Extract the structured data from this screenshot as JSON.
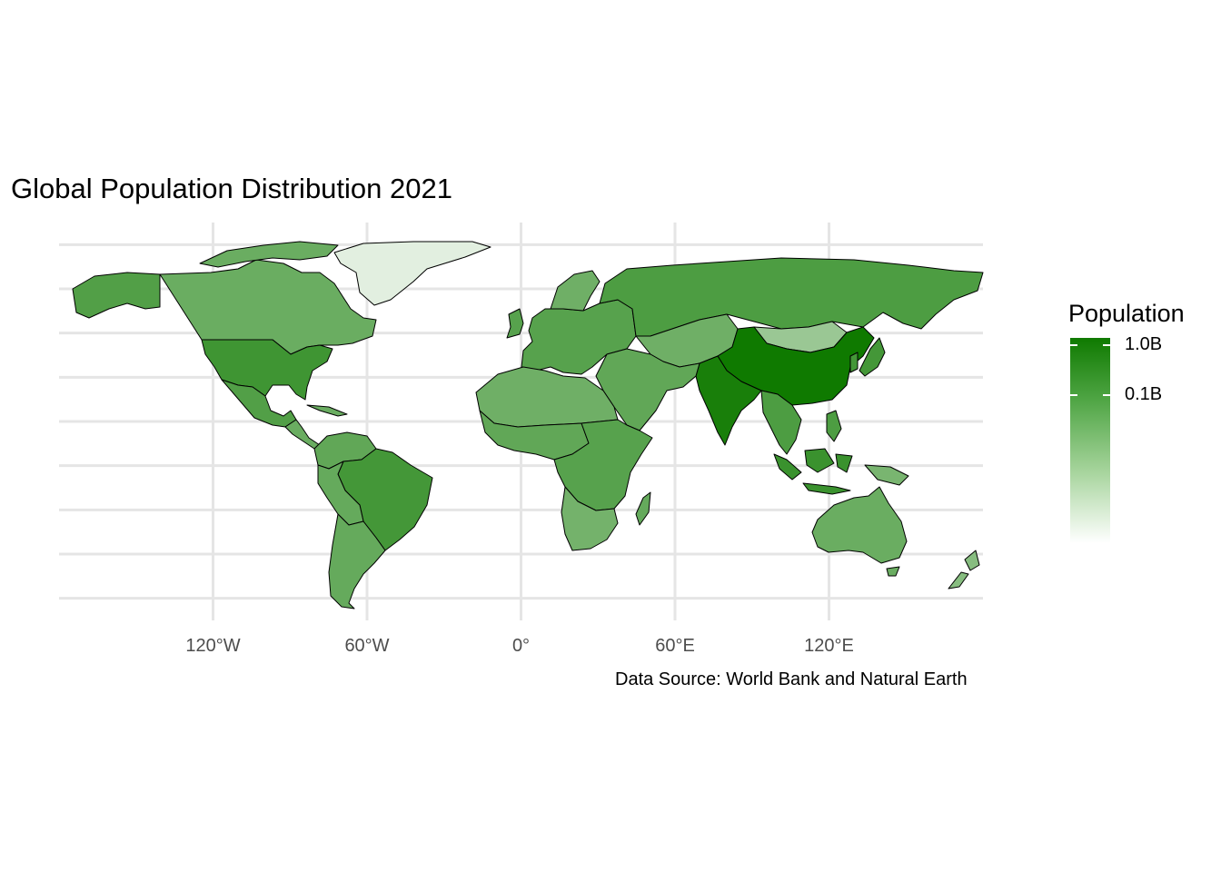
{
  "title": "Global Population Distribution 2021",
  "caption": "Data Source: World Bank and Natural Earth",
  "map": {
    "projection": "equirectangular",
    "grid": true,
    "x_ticks": [
      {
        "lon": -120,
        "label": "120°W"
      },
      {
        "lon": -60,
        "label": "60°W"
      },
      {
        "lon": 0,
        "label": "0°"
      },
      {
        "lon": 60,
        "label": "60°E"
      },
      {
        "lon": 120,
        "label": "120°E"
      }
    ],
    "y_grid_lats": [
      -80,
      -60,
      -40,
      -20,
      0,
      20,
      40,
      60,
      80
    ],
    "lon_range": [
      -180,
      180
    ],
    "lat_range": [
      -90,
      90
    ]
  },
  "colors": {
    "scale_high": "#0f7a00",
    "scale_low": "#ffffff",
    "border": "#000000",
    "grid": "#e5e5e5",
    "background": "#ffffff"
  },
  "legend": {
    "title": "Population",
    "placement": "right",
    "scale": "log",
    "ticks": [
      {
        "value": 1000000000,
        "label": "1.0B"
      },
      {
        "value": 100000000,
        "label": "0.1B"
      }
    ],
    "range": [
      100000,
      1412000000
    ]
  },
  "regions": [
    {
      "name": "Greenland",
      "shade": 0.12
    },
    {
      "name": "Canada",
      "shade": 0.62
    },
    {
      "name": "Alaska (USA)",
      "shade": 0.72
    },
    {
      "name": "United States",
      "shade": 0.8
    },
    {
      "name": "Mexico",
      "shade": 0.72
    },
    {
      "name": "Central America",
      "shade": 0.62
    },
    {
      "name": "Colombia / Venezuela",
      "shade": 0.66
    },
    {
      "name": "Brazil",
      "shade": 0.78
    },
    {
      "name": "Peru / Bolivia",
      "shade": 0.64
    },
    {
      "name": "Argentina / Chile",
      "shade": 0.64
    },
    {
      "name": "Europe",
      "shade": 0.7
    },
    {
      "name": "Scandinavia",
      "shade": 0.6
    },
    {
      "name": "Russia",
      "shade": 0.74
    },
    {
      "name": "Kazakhstan / Central Asia",
      "shade": 0.6
    },
    {
      "name": "Mongolia",
      "shade": 0.42
    },
    {
      "name": "China",
      "shade": 1.0
    },
    {
      "name": "India",
      "shade": 0.96
    },
    {
      "name": "Middle East",
      "shade": 0.66
    },
    {
      "name": "Southeast Asia",
      "shade": 0.74
    },
    {
      "name": "Indonesia",
      "shade": 0.82
    },
    {
      "name": "Japan / Korea",
      "shade": 0.78
    },
    {
      "name": "North Africa",
      "shade": 0.6
    },
    {
      "name": "Sahel / West Africa",
      "shade": 0.66
    },
    {
      "name": "Central / East Africa",
      "shade": 0.7
    },
    {
      "name": "Southern Africa",
      "shade": 0.58
    },
    {
      "name": "Madagascar",
      "shade": 0.64
    },
    {
      "name": "Australia",
      "shade": 0.62
    },
    {
      "name": "New Zealand",
      "shade": 0.5
    },
    {
      "name": "Papua New Guinea",
      "shade": 0.56
    }
  ]
}
